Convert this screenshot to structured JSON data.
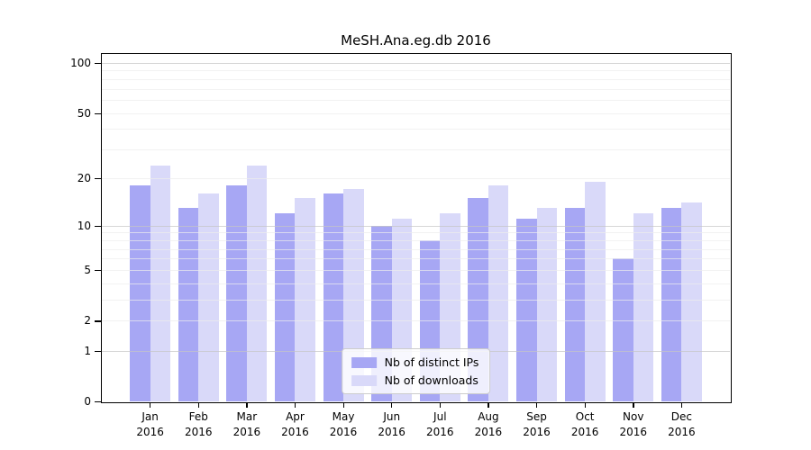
{
  "chart_data": {
    "type": "bar",
    "title": "MeSH.Ana.eg.db 2016",
    "categories": [
      "Jan",
      "Feb",
      "Mar",
      "Apr",
      "May",
      "Jun",
      "Jul",
      "Aug",
      "Sep",
      "Oct",
      "Nov",
      "Dec"
    ],
    "year_label": "2016",
    "series": [
      {
        "name": "Nb of distinct IPs",
        "color": "#a7a7f4",
        "values": [
          18,
          13,
          18,
          12,
          16,
          10,
          8,
          15,
          11,
          13,
          6,
          13
        ]
      },
      {
        "name": "Nb of downloads",
        "color": "#d9d9f9",
        "values": [
          24,
          16,
          24,
          15,
          17,
          11,
          12,
          18,
          13,
          19,
          12,
          14
        ]
      }
    ],
    "xlabel": "",
    "ylabel": "",
    "yscale": "log1p",
    "ylim": [
      0,
      113
    ],
    "yticks": [
      0,
      1,
      2,
      5,
      10,
      20,
      50,
      100
    ],
    "grid": {
      "major_values": [
        1,
        10,
        100
      ],
      "minor_values": [
        2,
        3,
        4,
        5,
        6,
        7,
        8,
        9,
        20,
        30,
        40,
        50,
        60,
        70,
        80,
        90
      ],
      "major_color": "#c4c4c4",
      "minor_color": "#ededed"
    },
    "legend_position": "lower center",
    "axis_color": "#000000"
  }
}
